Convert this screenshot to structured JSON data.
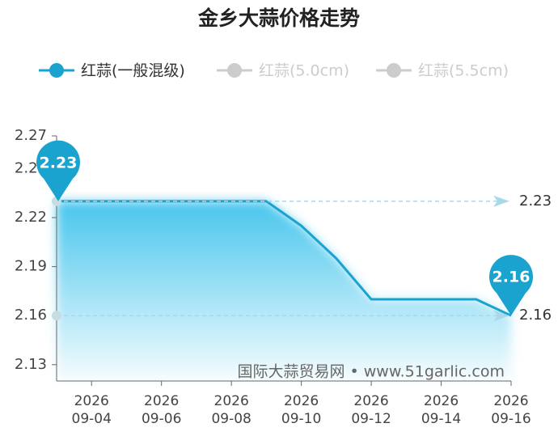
{
  "chart_data": {
    "type": "line",
    "title": "金乡大蒜价格走势",
    "categories": [
      null,
      "2026\n09-04",
      null,
      "2026\n09-06",
      null,
      "2026\n09-08",
      null,
      "2026\n09-10",
      null,
      "2026\n09-12",
      null,
      "2026\n09-14",
      null,
      "2026\n09-16"
    ],
    "series": [
      {
        "name": "红蒜(一般混级)",
        "color": "#1ba3cf",
        "values": [
          2.23,
          2.23,
          2.23,
          2.23,
          2.23,
          2.23,
          2.23,
          2.215,
          2.195,
          2.17,
          2.17,
          2.17,
          2.17,
          2.16
        ]
      },
      {
        "name": "红蒜(5.0cm)",
        "color": "#cccccc",
        "values": [
          null,
          null,
          null,
          null,
          null,
          null,
          null,
          null,
          null,
          null,
          null,
          null,
          null,
          null
        ]
      },
      {
        "name": "红蒜(5.5cm)",
        "color": "#cccccc",
        "values": [
          null,
          null,
          null,
          null,
          null,
          null,
          null,
          null,
          null,
          null,
          null,
          null,
          null,
          null
        ]
      }
    ],
    "ylim": [
      2.12,
      2.27
    ],
    "yticks": [
      2.13,
      2.16,
      2.19,
      2.22,
      2.25,
      2.27
    ],
    "mark_lines": [
      2.23,
      2.16
    ],
    "watermark": "国际大蒜贸易网 • www.51garlic.com",
    "legend": "top",
    "grid": false
  }
}
